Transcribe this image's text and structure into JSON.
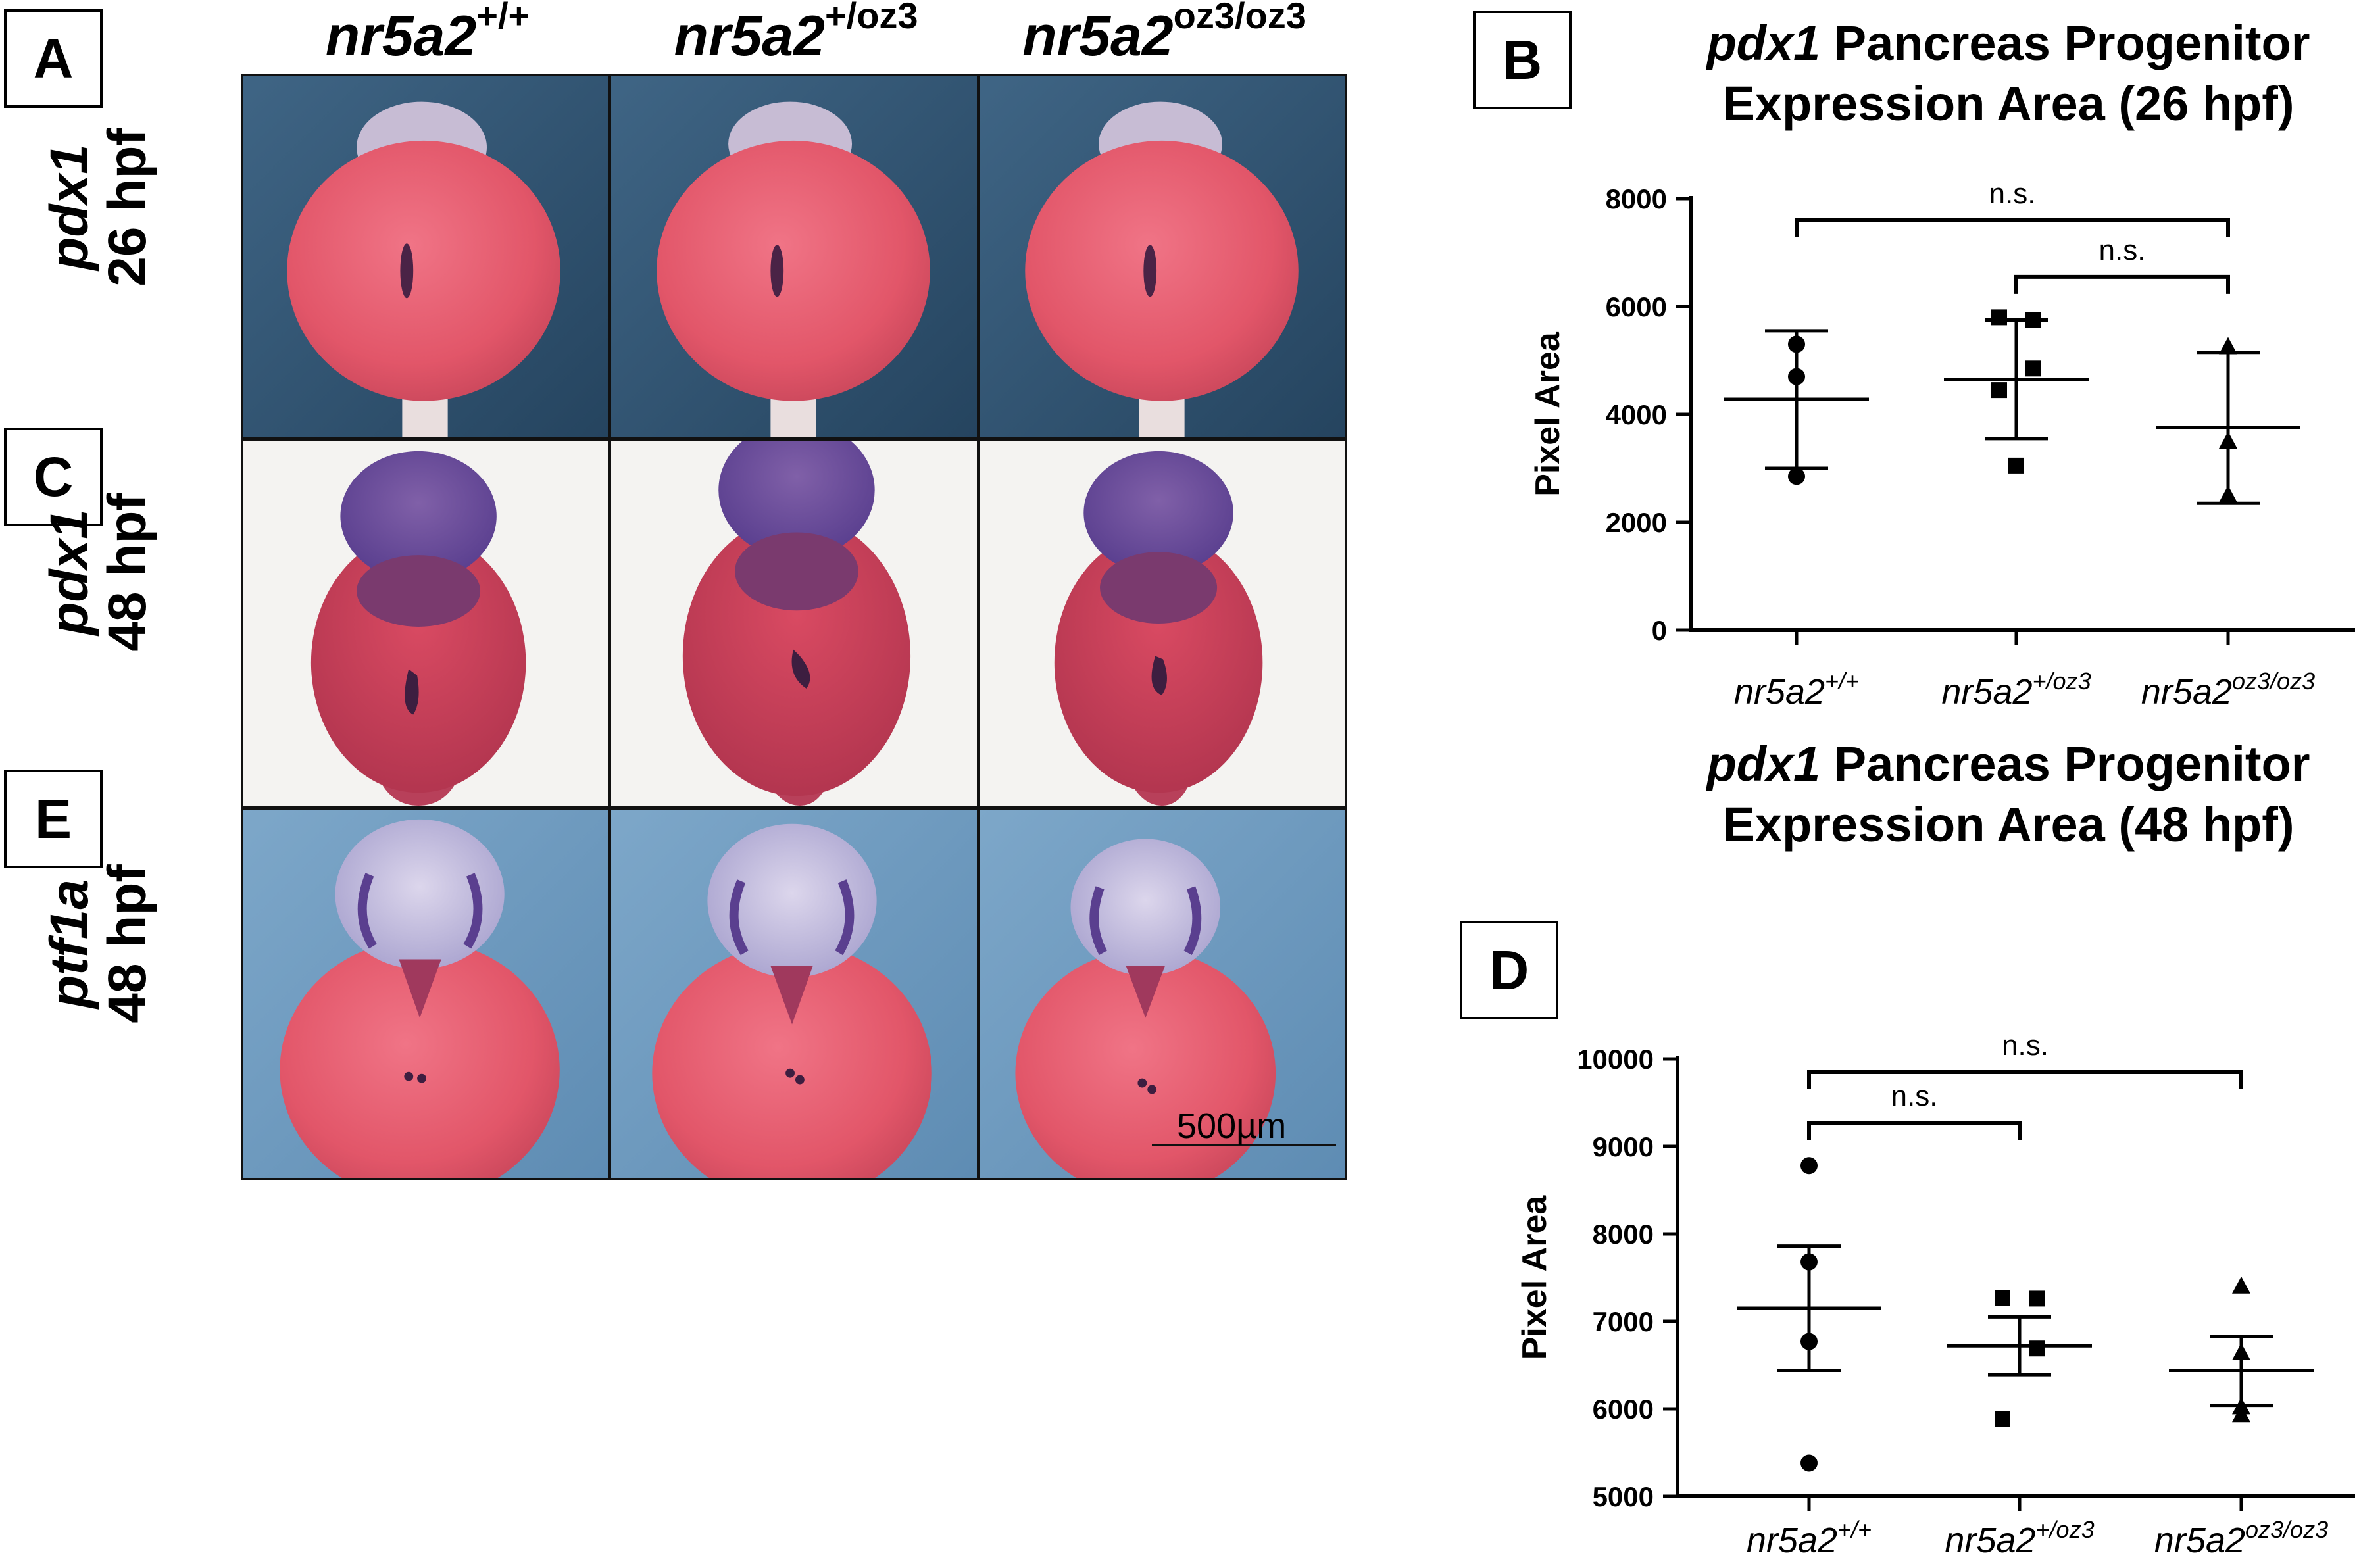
{
  "panels": {
    "A": "A",
    "B": "B",
    "C": "C",
    "D": "D",
    "E": "E"
  },
  "columns": [
    {
      "base": "nr5a2",
      "sup": "+/+"
    },
    {
      "base": "nr5a2",
      "sup": "+/oz3"
    },
    {
      "base": "nr5a2",
      "sup": "oz3/oz3"
    }
  ],
  "rows": [
    {
      "gene": "pdx1",
      "stage": "26 hpf"
    },
    {
      "gene": "pdx1",
      "stage": "48 hpf"
    },
    {
      "gene": "ptf1a",
      "stage": "48 hpf"
    }
  ],
  "scale_bar": "500µm",
  "colors": {
    "blue_background": "#2f4f6b",
    "white_background": "#f4f3f1",
    "light_blue_background": "#6f9bbf",
    "yolk_red": "#e55a6c",
    "stain_purple": "#5a3f8f"
  },
  "chart_data": [
    {
      "type": "scatter",
      "panel": "B",
      "title_gene": "pdx1",
      "title_rest": "Pancreas Progenitor",
      "title_line2": "Expression Area (26 hpf)",
      "ylabel": "Pixel Area",
      "ylim": [
        0,
        8000
      ],
      "yticks": [
        0,
        2000,
        4000,
        6000,
        8000
      ],
      "categories": [
        {
          "base": "nr5a2",
          "sup": "+/+"
        },
        {
          "base": "nr5a2",
          "sup": "+/oz3"
        },
        {
          "base": "nr5a2",
          "sup": "oz3/oz3"
        }
      ],
      "groups": [
        {
          "marker": "circle",
          "points": [
            5300,
            4700,
            2850
          ],
          "mean": 4280,
          "upper": 5550,
          "lower": 3000
        },
        {
          "marker": "square",
          "points": [
            5800,
            5750,
            4850,
            4450,
            3050
          ],
          "mean": 4650,
          "upper": 5750,
          "lower": 3550
        },
        {
          "marker": "triangle",
          "points": [
            5250,
            3500,
            2500
          ],
          "mean": 3750,
          "upper": 5150,
          "lower": 2350
        }
      ],
      "brackets": [
        {
          "from": 0,
          "to": 2,
          "y": 7600,
          "label": "n.s."
        },
        {
          "from": 1,
          "to": 2,
          "y": 6550,
          "label": "n.s."
        }
      ]
    },
    {
      "type": "scatter",
      "panel": "D",
      "title_gene": "pdx1",
      "title_rest": "Pancreas Progenitor",
      "title_line2": "Expression Area (48 hpf)",
      "ylabel": "Pixel Area",
      "ylim": [
        5000,
        10000
      ],
      "yticks": [
        5000,
        6000,
        7000,
        8000,
        9000,
        10000
      ],
      "categories": [
        {
          "base": "nr5a2",
          "sup": "+/+"
        },
        {
          "base": "nr5a2",
          "sup": "+/oz3"
        },
        {
          "base": "nr5a2",
          "sup": "oz3/oz3"
        }
      ],
      "groups": [
        {
          "marker": "circle",
          "points": [
            8780,
            7680,
            6770,
            5380
          ],
          "mean": 7150,
          "upper": 7860,
          "lower": 6440
        },
        {
          "marker": "square",
          "points": [
            7270,
            7260,
            6690,
            5880
          ],
          "mean": 6720,
          "upper": 7050,
          "lower": 6390
        },
        {
          "marker": "triangle",
          "points": [
            7400,
            6640,
            6020,
            5930
          ],
          "mean": 6440,
          "upper": 6830,
          "lower": 6040
        }
      ],
      "brackets": [
        {
          "from": 0,
          "to": 2,
          "y": 9850,
          "label": "n.s."
        },
        {
          "from": 0,
          "to": 1,
          "y": 9270,
          "label": "n.s."
        }
      ]
    }
  ]
}
